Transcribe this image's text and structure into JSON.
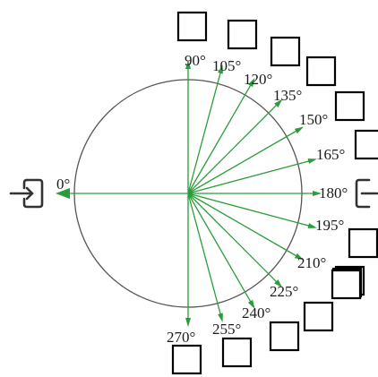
{
  "diagram": {
    "center_angle_start": "0°",
    "angles": [
      {
        "deg": 90,
        "label": "90°"
      },
      {
        "deg": 105,
        "label": "105°"
      },
      {
        "deg": 120,
        "label": "120°"
      },
      {
        "deg": 135,
        "label": "135°"
      },
      {
        "deg": 150,
        "label": "150°"
      },
      {
        "deg": 165,
        "label": "165°"
      },
      {
        "deg": 180,
        "label": "180°"
      },
      {
        "deg": 195,
        "label": "195°"
      },
      {
        "deg": 210,
        "label": "210°"
      },
      {
        "deg": 225,
        "label": "225°"
      },
      {
        "deg": 240,
        "label": "240°"
      },
      {
        "deg": 255,
        "label": "255°"
      },
      {
        "deg": 270,
        "label": "270°"
      }
    ],
    "colors": {
      "ray": "#2a9d3a",
      "circle": "#555555",
      "box": "#000000",
      "icon": "#333333"
    },
    "icons": {
      "left": "login-icon",
      "right": "logout-icon"
    }
  }
}
